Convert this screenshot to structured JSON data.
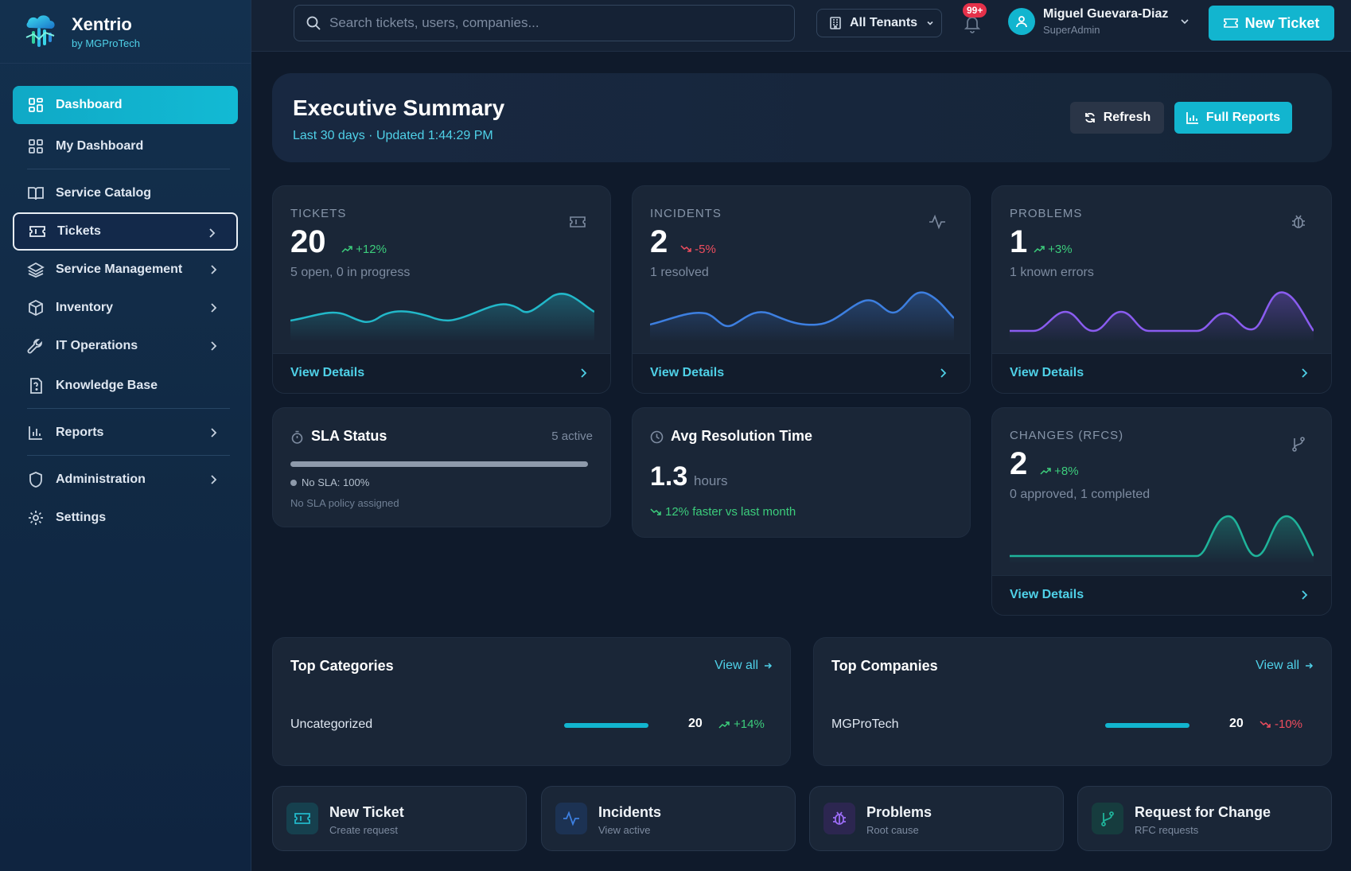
{
  "brand": {
    "name": "Xentrio",
    "sub": "by MGProTech"
  },
  "sidebar": {
    "items": [
      {
        "label": "Dashboard"
      },
      {
        "label": "My Dashboard"
      },
      {
        "label": "Service Catalog"
      },
      {
        "label": "Tickets"
      },
      {
        "label": "Service Management"
      },
      {
        "label": "Inventory"
      },
      {
        "label": "IT Operations"
      },
      {
        "label": "Knowledge Base"
      },
      {
        "label": "Reports"
      },
      {
        "label": "Administration"
      },
      {
        "label": "Settings"
      }
    ]
  },
  "header": {
    "search_placeholder": "Search tickets, users, companies...",
    "tenant": "All Tenants",
    "notifications_badge": "99+",
    "user_name": "Miguel Guevara-Diaz",
    "user_role": "SuperAdmin",
    "new_ticket": "New Ticket"
  },
  "summary": {
    "title": "Executive Summary",
    "subtitle": "Last 30 days · Updated 1:44:29 PM",
    "refresh": "Refresh",
    "full_reports": "Full Reports"
  },
  "metrics": {
    "tickets": {
      "label": "TICKETS",
      "value": "20",
      "delta": "+12%",
      "desc": "5 open, 0 in progress",
      "link": "View Details",
      "color": "#22b8c9"
    },
    "incidents": {
      "label": "INCIDENTS",
      "value": "2",
      "delta": "-5%",
      "desc": "1 resolved",
      "link": "View Details",
      "color": "#3d7fe0"
    },
    "problems": {
      "label": "PROBLEMS",
      "value": "1",
      "delta": "+3%",
      "desc": "1 known errors",
      "link": "View Details",
      "color": "#8a5cf0"
    },
    "changes": {
      "label": "CHANGES (RFCS)",
      "value": "2",
      "delta": "+8%",
      "desc": "0 approved, 1 completed",
      "link": "View Details",
      "color": "#1fb39a"
    }
  },
  "sla": {
    "title": "SLA Status",
    "active": "5 active",
    "legend": "No SLA: 100%",
    "note": "No SLA policy assigned"
  },
  "avg_resolution": {
    "title": "Avg Resolution Time",
    "value": "1.3",
    "unit": "hours",
    "trend": "12% faster vs last month"
  },
  "top_categories": {
    "title": "Top Categories",
    "view_all": "View all",
    "rows": [
      {
        "name": "Uncategorized",
        "count": "20",
        "delta": "+14%",
        "share": 1.0
      }
    ]
  },
  "top_companies": {
    "title": "Top Companies",
    "view_all": "View all",
    "rows": [
      {
        "name": "MGProTech",
        "count": "20",
        "delta": "-10%",
        "share": 1.0
      }
    ]
  },
  "quick_actions": [
    {
      "title": "New Ticket",
      "sub": "Create request"
    },
    {
      "title": "Incidents",
      "sub": "View active"
    },
    {
      "title": "Problems",
      "sub": "Root cause"
    },
    {
      "title": "Request for Change",
      "sub": "RFC requests"
    }
  ]
}
